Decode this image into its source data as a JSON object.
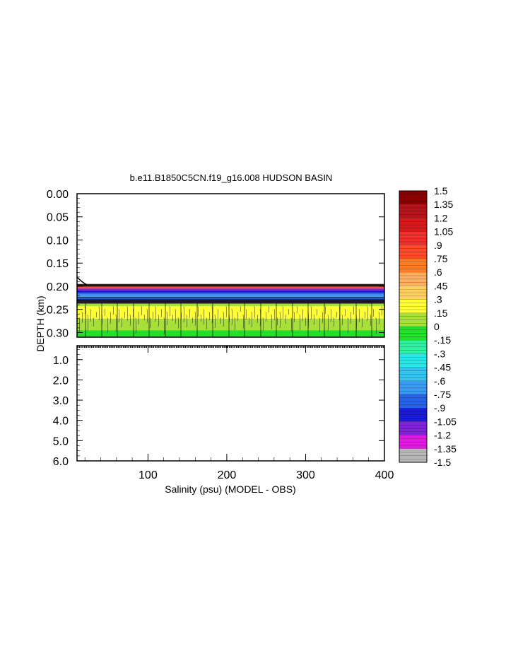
{
  "chart_data": {
    "type": "heatmap",
    "title": "b.e11.B1850C5CN.f19_g16.008 HUDSON BASIN",
    "xlabel": "Salinity (psu) (MODEL - OBS)",
    "ylabel": "DEPTH (km)",
    "xlim": [
      10,
      400
    ],
    "x_ticks": [
      "100",
      "200",
      "300",
      "400"
    ],
    "panels": [
      {
        "name": "upper",
        "ylim": [
          0.0,
          0.31
        ],
        "y_ticks": [
          "0.00",
          "0.05",
          "0.10",
          "0.15",
          "0.20",
          "0.25",
          "0.30"
        ],
        "bands": [
          {
            "top": 0.196,
            "bottom": 0.201,
            "value": 1.3
          },
          {
            "top": 0.201,
            "bottom": 0.205,
            "value": 0.9
          },
          {
            "top": 0.205,
            "bottom": 0.209,
            "value": -1.1
          },
          {
            "top": 0.209,
            "bottom": 0.214,
            "value": -0.95
          },
          {
            "top": 0.214,
            "bottom": 0.218,
            "value": -0.8
          },
          {
            "top": 0.218,
            "bottom": 0.224,
            "value": -0.55
          },
          {
            "top": 0.224,
            "bottom": 0.23,
            "value": -0.78
          },
          {
            "top": 0.23,
            "bottom": 0.236,
            "value": -1.0
          },
          {
            "top": 0.236,
            "bottom": 0.243,
            "value": 0.2
          },
          {
            "top": 0.243,
            "bottom": 0.27,
            "value": 0.28
          },
          {
            "top": 0.27,
            "bottom": 0.295,
            "value": 0.12
          },
          {
            "top": 0.295,
            "bottom": 0.31,
            "value": -0.05
          }
        ]
      },
      {
        "name": "lower",
        "ylim": [
          0.31,
          6.0
        ],
        "y_ticks": [
          "1.0",
          "2.0",
          "3.0",
          "4.0",
          "5.0",
          "6.0"
        ],
        "bands": []
      }
    ],
    "colorbar": {
      "labels": [
        "1.5",
        "1.35",
        "1.2",
        "1.05",
        ".9",
        ".75",
        ".6",
        ".45",
        ".3",
        ".15",
        "0",
        "-.15",
        "-.3",
        "-.45",
        "-.6",
        "-.75",
        "-.9",
        "-1.05",
        "-1.2",
        "-1.35",
        "-1.5"
      ],
      "colors": [
        "#8b0000",
        "#b5141a",
        "#d7191c",
        "#f0302c",
        "#ff4a2a",
        "#fd7d26",
        "#fdae61",
        "#fed060",
        "#ffff33",
        "#a8e03a",
        "#22e02a",
        "#2ef2a0",
        "#26e8e8",
        "#33c3ee",
        "#3b9bf2",
        "#2663e6",
        "#1a1ad8",
        "#7f22d8",
        "#e01ae0",
        "#b7b7b7",
        "#6f6f6f"
      ]
    }
  }
}
